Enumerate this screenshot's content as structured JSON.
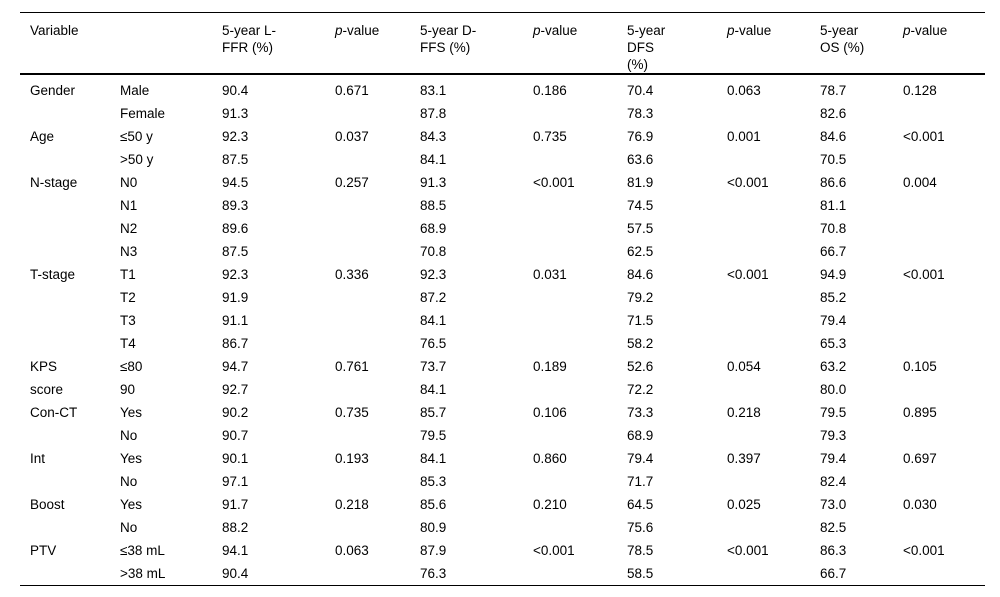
{
  "page": {
    "background_color": "#ffffff",
    "text_color": "#000000"
  },
  "table": {
    "headers": [
      "Variable",
      "",
      "5-year L-FFR (%)",
      "p-value",
      "5-year D-FFS (%)",
      "p-value",
      "5-year DFS (%)",
      "p-value",
      "5-year OS (%)",
      "p-value"
    ],
    "rows": [
      [
        "Gender",
        "Male",
        "90.4",
        "0.671",
        "83.1",
        "0.186",
        "70.4",
        "0.063",
        "78.7",
        "0.128"
      ],
      [
        "",
        "Female",
        "91.3",
        "",
        "87.8",
        "",
        "78.3",
        "",
        "82.6",
        ""
      ],
      [
        "Age",
        "≤50 y",
        "92.3",
        "0.037",
        "84.3",
        "0.735",
        "76.9",
        "0.001",
        "84.6",
        "<0.001"
      ],
      [
        "",
        ">50 y",
        "87.5",
        "",
        "84.1",
        "",
        "63.6",
        "",
        "70.5",
        ""
      ],
      [
        "N-stage",
        "N0",
        "94.5",
        "0.257",
        "91.3",
        "<0.001",
        "81.9",
        "<0.001",
        "86.6",
        "0.004"
      ],
      [
        "",
        "N1",
        "89.3",
        "",
        "88.5",
        "",
        "74.5",
        "",
        "81.1",
        ""
      ],
      [
        "",
        "N2",
        "89.6",
        "",
        "68.9",
        "",
        "57.5",
        "",
        "70.8",
        ""
      ],
      [
        "",
        "N3",
        "87.5",
        "",
        "70.8",
        "",
        "62.5",
        "",
        "66.7",
        ""
      ],
      [
        "T-stage",
        "T1",
        "92.3",
        "0.336",
        "92.3",
        "0.031",
        "84.6",
        "<0.001",
        "94.9",
        "<0.001"
      ],
      [
        "",
        "T2",
        "91.9",
        "",
        "87.2",
        "",
        "79.2",
        "",
        "85.2",
        ""
      ],
      [
        "",
        "T3",
        "91.1",
        "",
        "84.1",
        "",
        "71.5",
        "",
        "79.4",
        ""
      ],
      [
        "",
        "T4",
        "86.7",
        "",
        "76.5",
        "",
        "58.2",
        "",
        "65.3",
        ""
      ],
      [
        "KPS",
        "≤80",
        "94.7",
        "0.761",
        "73.7",
        "0.189",
        "52.6",
        "0.054",
        "63.2",
        "0.105"
      ],
      [
        "score",
        "90",
        "92.7",
        "",
        "84.1",
        "",
        "72.2",
        "",
        "80.0",
        ""
      ],
      [
        "Con-CT",
        "Yes",
        "90.2",
        "0.735",
        "85.7",
        "0.106",
        "73.3",
        "0.218",
        "79.5",
        "0.895"
      ],
      [
        "",
        "No",
        "90.7",
        "",
        "79.5",
        "",
        "68.9",
        "",
        "79.3",
        ""
      ],
      [
        "Int",
        "Yes",
        "90.1",
        "0.193",
        "84.1",
        "0.860",
        "79.4",
        "0.397",
        "79.4",
        "0.697"
      ],
      [
        "",
        "No",
        "97.1",
        "",
        "85.3",
        "",
        "71.7",
        "",
        "82.4",
        ""
      ],
      [
        "Boost",
        "Yes",
        "91.7",
        "0.218",
        "85.6",
        "0.210",
        "64.5",
        "0.025",
        "73.0",
        "0.030"
      ],
      [
        "",
        "No",
        "88.2",
        "",
        "80.9",
        "",
        "75.6",
        "",
        "82.5",
        ""
      ],
      [
        "PTV",
        "≤38 mL",
        "94.1",
        "0.063",
        "87.9",
        "<0.001",
        "78.5",
        "<0.001",
        "86.3",
        "<0.001"
      ],
      [
        "",
        ">38 mL",
        "90.4",
        "",
        "76.3",
        "",
        "58.5",
        "",
        "66.7",
        ""
      ]
    ]
  }
}
